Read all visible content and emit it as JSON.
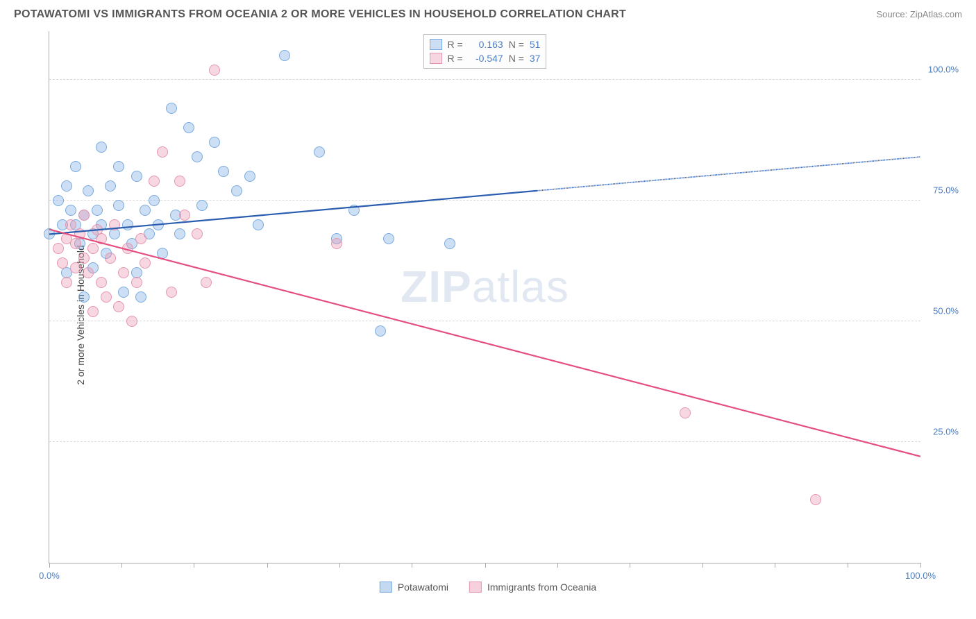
{
  "title": "POTAWATOMI VS IMMIGRANTS FROM OCEANIA 2 OR MORE VEHICLES IN HOUSEHOLD CORRELATION CHART",
  "source_label": "Source: ",
  "source_name": "ZipAtlas.com",
  "y_axis_label": "2 or more Vehicles in Household",
  "watermark_a": "ZIP",
  "watermark_b": "atlas",
  "chart": {
    "type": "scatter",
    "xlim": [
      0,
      100
    ],
    "ylim": [
      0,
      110
    ],
    "y_gridlines": [
      25,
      50,
      75,
      100
    ],
    "y_ticklabels": [
      "25.0%",
      "50.0%",
      "75.0%",
      "100.0%"
    ],
    "x_ticks_pct": [
      0,
      8.3,
      16.6,
      25,
      33.3,
      41.6,
      50,
      58.3,
      66.6,
      75,
      83.3,
      91.6,
      100
    ],
    "x_ticklabel_left": "0.0%",
    "x_ticklabel_right": "100.0%",
    "background_color": "#ffffff",
    "grid_color": "#d8d8d8",
    "point_radius": 8,
    "series": [
      {
        "name": "Potawatomi",
        "fill": "rgba(120,170,225,0.38)",
        "stroke": "#7aaade",
        "line_color": "#2a5db0",
        "r_label": "R =",
        "r_value": "0.163",
        "n_label": "N =",
        "n_value": "51",
        "trend": {
          "x1": 0,
          "y1": 68,
          "x2_solid": 56,
          "y2_solid": 77,
          "x2": 100,
          "y2": 84
        },
        "points": [
          [
            0,
            68
          ],
          [
            1,
            75
          ],
          [
            1.5,
            70
          ],
          [
            2,
            60
          ],
          [
            2,
            78
          ],
          [
            2.5,
            73
          ],
          [
            3,
            70
          ],
          [
            3,
            82
          ],
          [
            3.5,
            66
          ],
          [
            4,
            55
          ],
          [
            4,
            72
          ],
          [
            4.5,
            77
          ],
          [
            5,
            61
          ],
          [
            5,
            68
          ],
          [
            5.5,
            73
          ],
          [
            6,
            70
          ],
          [
            6,
            86
          ],
          [
            6.5,
            64
          ],
          [
            7,
            78
          ],
          [
            7.5,
            68
          ],
          [
            8,
            82
          ],
          [
            8,
            74
          ],
          [
            8.5,
            56
          ],
          [
            9,
            70
          ],
          [
            9.5,
            66
          ],
          [
            10,
            60
          ],
          [
            10,
            80
          ],
          [
            10.5,
            55
          ],
          [
            11,
            73
          ],
          [
            11.5,
            68
          ],
          [
            12,
            75
          ],
          [
            12.5,
            70
          ],
          [
            13,
            64
          ],
          [
            14,
            94
          ],
          [
            14.5,
            72
          ],
          [
            15,
            68
          ],
          [
            16,
            90
          ],
          [
            17,
            84
          ],
          [
            17.5,
            74
          ],
          [
            19,
            87
          ],
          [
            20,
            81
          ],
          [
            21.5,
            77
          ],
          [
            23,
            80
          ],
          [
            24,
            70
          ],
          [
            27,
            105
          ],
          [
            31,
            85
          ],
          [
            33,
            67
          ],
          [
            35,
            73
          ],
          [
            38,
            48
          ],
          [
            39,
            67
          ],
          [
            46,
            66
          ]
        ]
      },
      {
        "name": "Immigrants from Oceania",
        "fill": "rgba(235,150,180,0.38)",
        "stroke": "#e695b0",
        "line_color": "#e54e7e",
        "r_label": "R =",
        "r_value": "-0.547",
        "n_label": "N =",
        "n_value": "37",
        "trend": {
          "x1": 0,
          "y1": 69,
          "x2_solid": 100,
          "y2_solid": 22,
          "x2": 100,
          "y2": 22
        },
        "points": [
          [
            1,
            65
          ],
          [
            1.5,
            62
          ],
          [
            2,
            67
          ],
          [
            2,
            58
          ],
          [
            2.5,
            70
          ],
          [
            3,
            66
          ],
          [
            3,
            61
          ],
          [
            3.5,
            68
          ],
          [
            4,
            63
          ],
          [
            4,
            72
          ],
          [
            4.5,
            60
          ],
          [
            5,
            65
          ],
          [
            5,
            52
          ],
          [
            5.5,
            69
          ],
          [
            6,
            58
          ],
          [
            6,
            67
          ],
          [
            6.5,
            55
          ],
          [
            7,
            63
          ],
          [
            7.5,
            70
          ],
          [
            8,
            53
          ],
          [
            8.5,
            60
          ],
          [
            9,
            65
          ],
          [
            9.5,
            50
          ],
          [
            10,
            58
          ],
          [
            10.5,
            67
          ],
          [
            11,
            62
          ],
          [
            12,
            79
          ],
          [
            13,
            85
          ],
          [
            14,
            56
          ],
          [
            15,
            79
          ],
          [
            15.5,
            72
          ],
          [
            17,
            68
          ],
          [
            18,
            58
          ],
          [
            19,
            102
          ],
          [
            33,
            66
          ],
          [
            73,
            31
          ],
          [
            88,
            13
          ]
        ]
      }
    ]
  },
  "legend_bottom": {
    "items": [
      {
        "label": "Potawatomi",
        "fill": "rgba(120,170,225,0.45)",
        "stroke": "#7aaade"
      },
      {
        "label": "Immigrants from Oceania",
        "fill": "rgba(235,150,180,0.45)",
        "stroke": "#e695b0"
      }
    ]
  }
}
